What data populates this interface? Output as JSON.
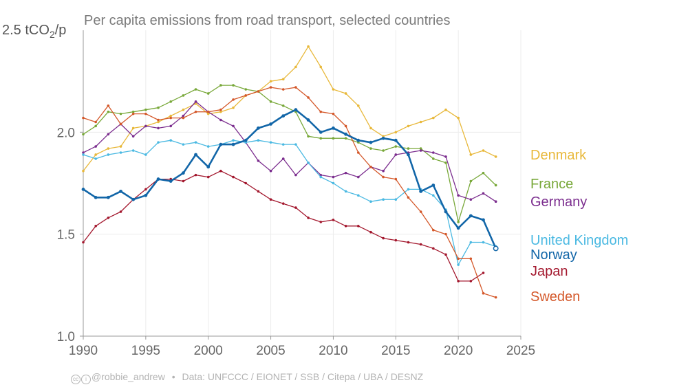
{
  "footer": {
    "credit": "@robbie_andrew",
    "separator": "•",
    "source": "Data: UNFCCC / EIONET / SSB / Citepa / UBA / DESNZ"
  },
  "chart_data": {
    "type": "line",
    "title": "Per capita emissions from road transport, selected countries",
    "ylabel": "tCO2/p",
    "ylabel_top_tick": "2.5",
    "xlabel": "",
    "xlim": [
      1990,
      2025
    ],
    "ylim": [
      1.0,
      2.5
    ],
    "xticks": [
      1990,
      1995,
      2000,
      2005,
      2010,
      2015,
      2020,
      2025
    ],
    "yticks": [
      {
        "value": 1.0,
        "label": "1.0"
      },
      {
        "value": 1.5,
        "label": "1.5"
      },
      {
        "value": 2.0,
        "label": "2.0"
      }
    ],
    "grid": true,
    "legend": "right, direct labels",
    "x": [
      1990,
      1991,
      1992,
      1993,
      1994,
      1995,
      1996,
      1997,
      1998,
      1999,
      2000,
      2001,
      2002,
      2003,
      2004,
      2005,
      2006,
      2007,
      2008,
      2009,
      2010,
      2011,
      2012,
      2013,
      2014,
      2015,
      2016,
      2017,
      2018,
      2019,
      2020,
      2021,
      2022,
      2023
    ],
    "series": [
      {
        "name": "Denmark",
        "color": "#e8b83a",
        "emphasis": false,
        "values": [
          1.81,
          1.89,
          1.92,
          1.93,
          2.02,
          2.03,
          2.05,
          2.08,
          2.11,
          2.14,
          2.09,
          2.1,
          2.12,
          2.18,
          2.2,
          2.25,
          2.26,
          2.32,
          2.42,
          2.32,
          2.21,
          2.19,
          2.13,
          2.02,
          1.98,
          2.0,
          2.03,
          2.05,
          2.07,
          2.11,
          2.07,
          1.89,
          1.91,
          1.88
        ]
      },
      {
        "name": "France",
        "color": "#78a839",
        "emphasis": false,
        "values": [
          1.99,
          2.03,
          2.1,
          2.09,
          2.1,
          2.11,
          2.12,
          2.15,
          2.18,
          2.21,
          2.19,
          2.23,
          2.23,
          2.21,
          2.2,
          2.15,
          2.13,
          2.1,
          1.98,
          1.97,
          1.97,
          1.97,
          1.95,
          1.92,
          1.91,
          1.93,
          1.92,
          1.92,
          1.87,
          1.85,
          1.56,
          1.76,
          1.8,
          1.74
        ]
      },
      {
        "name": "Germany",
        "color": "#7b2d8e",
        "emphasis": false,
        "values": [
          1.9,
          1.93,
          1.99,
          2.04,
          1.98,
          2.03,
          2.02,
          2.03,
          2.08,
          2.15,
          2.1,
          2.06,
          2.03,
          1.95,
          1.86,
          1.81,
          1.87,
          1.79,
          1.85,
          1.79,
          1.78,
          1.8,
          1.78,
          1.83,
          1.81,
          1.89,
          1.9,
          1.91,
          1.9,
          1.88,
          1.69,
          1.67,
          1.7,
          1.66
        ]
      },
      {
        "name": "United Kingdom",
        "color": "#4ab9e2",
        "emphasis": false,
        "values": [
          1.89,
          1.87,
          1.89,
          1.9,
          1.91,
          1.89,
          1.95,
          1.96,
          1.94,
          1.95,
          1.93,
          1.94,
          1.96,
          1.95,
          1.96,
          1.95,
          1.94,
          1.94,
          1.85,
          1.78,
          1.75,
          1.71,
          1.69,
          1.66,
          1.67,
          1.67,
          1.72,
          1.72,
          1.69,
          1.62,
          1.35,
          1.46,
          1.46,
          1.44
        ]
      },
      {
        "name": "Norway",
        "color": "#1266a8",
        "emphasis": true,
        "values": [
          1.72,
          1.68,
          1.68,
          1.71,
          1.67,
          1.69,
          1.77,
          1.76,
          1.8,
          1.89,
          1.83,
          1.94,
          1.94,
          1.96,
          2.02,
          2.04,
          2.08,
          2.11,
          2.06,
          2.0,
          2.02,
          1.99,
          1.96,
          1.95,
          1.97,
          1.96,
          1.89,
          1.71,
          1.74,
          1.61,
          1.53,
          1.59,
          1.57,
          1.43
        ]
      },
      {
        "name": "Japan",
        "color": "#a3172d",
        "emphasis": false,
        "values": [
          1.46,
          1.54,
          1.58,
          1.61,
          1.67,
          1.72,
          1.77,
          1.77,
          1.76,
          1.79,
          1.78,
          1.81,
          1.78,
          1.75,
          1.71,
          1.67,
          1.65,
          1.63,
          1.58,
          1.56,
          1.57,
          1.54,
          1.54,
          1.51,
          1.48,
          1.47,
          1.46,
          1.45,
          1.43,
          1.4,
          1.27,
          1.27,
          1.31,
          null
        ]
      },
      {
        "name": "Sweden",
        "color": "#d4582a",
        "emphasis": false,
        "values": [
          2.07,
          2.05,
          2.13,
          2.04,
          2.09,
          2.09,
          2.06,
          2.07,
          2.07,
          2.1,
          2.1,
          2.11,
          2.16,
          2.18,
          2.2,
          2.22,
          2.21,
          2.22,
          2.17,
          2.1,
          2.09,
          2.03,
          1.9,
          1.83,
          1.78,
          1.77,
          1.68,
          1.61,
          1.52,
          1.5,
          1.38,
          1.38,
          1.21,
          1.19
        ]
      }
    ]
  }
}
